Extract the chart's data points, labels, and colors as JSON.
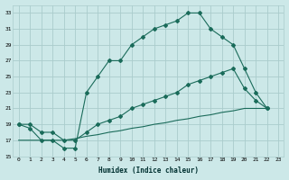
{
  "xlabel": "Humidex (Indice chaleur)",
  "bg_color": "#cce8e8",
  "grid_color": "#aacccc",
  "line_color": "#1a6b5a",
  "line1_x": [
    0,
    1,
    2,
    3,
    4,
    5,
    6,
    7,
    8,
    9,
    10,
    11,
    12,
    13,
    14,
    15,
    16,
    17,
    18,
    19,
    20,
    21,
    22
  ],
  "line1_y": [
    19,
    18.5,
    17,
    17,
    16,
    16,
    23,
    25,
    27,
    27,
    29,
    30,
    31,
    31.5,
    32,
    33,
    33,
    31,
    30,
    29,
    26,
    23,
    21
  ],
  "line2_x": [
    0,
    1,
    2,
    3,
    4,
    5,
    6,
    7,
    8,
    9,
    10,
    11,
    12,
    13,
    14,
    15,
    16,
    17,
    18,
    19,
    20,
    21,
    22
  ],
  "line2_y": [
    19,
    19,
    18,
    18,
    17,
    17,
    18,
    19,
    19.5,
    20,
    21,
    21.5,
    22,
    22.5,
    23,
    24,
    24.5,
    25,
    25.5,
    26,
    23.5,
    22,
    21
  ],
  "line3_x": [
    0,
    1,
    2,
    3,
    4,
    5,
    6,
    7,
    8,
    9,
    10,
    11,
    12,
    13,
    14,
    15,
    16,
    17,
    18,
    19,
    20,
    21,
    22
  ],
  "line3_y": [
    17,
    17,
    17,
    17,
    17,
    17.2,
    17.5,
    17.7,
    18,
    18.2,
    18.5,
    18.7,
    19,
    19.2,
    19.5,
    19.7,
    20,
    20.2,
    20.5,
    20.7,
    21,
    21,
    21
  ],
  "ylim": [
    15,
    34
  ],
  "xlim": [
    -0.5,
    23.5
  ],
  "yticks": [
    15,
    17,
    19,
    21,
    23,
    25,
    27,
    29,
    31,
    33
  ],
  "xticks": [
    0,
    1,
    2,
    3,
    4,
    5,
    6,
    7,
    8,
    9,
    10,
    11,
    12,
    13,
    14,
    15,
    16,
    17,
    18,
    19,
    20,
    21,
    22,
    23
  ]
}
